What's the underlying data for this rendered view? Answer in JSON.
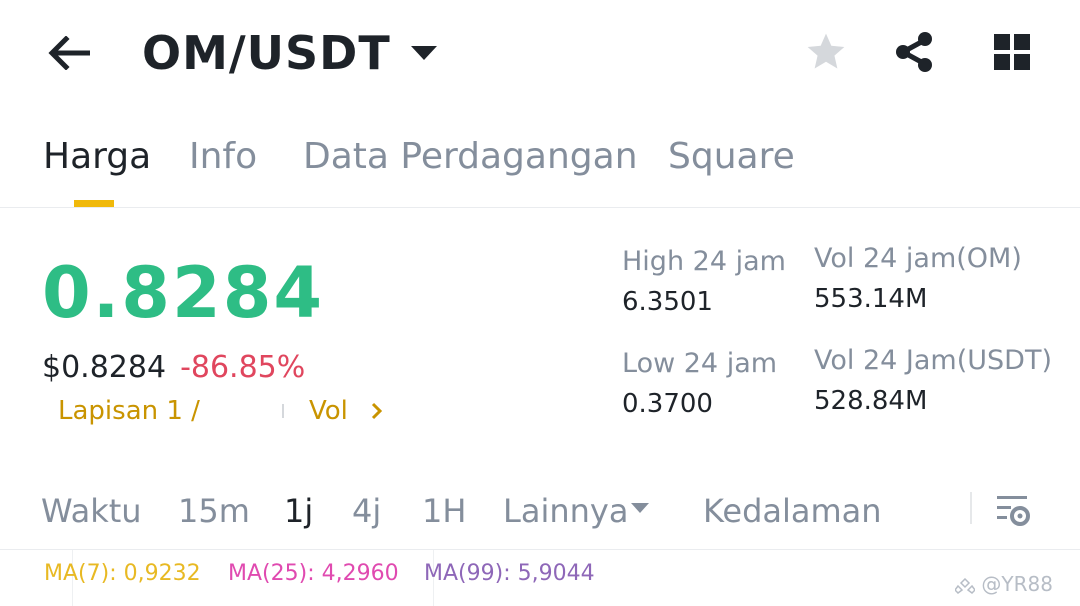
{
  "header": {
    "pair": "OM/USDT",
    "icons": [
      "back-arrow-icon",
      "favorite-star-icon",
      "share-icon",
      "grid-menu-icon"
    ]
  },
  "tabs": [
    {
      "label": "Harga",
      "active": true
    },
    {
      "label": "Info",
      "active": false
    },
    {
      "label": "Data Perdagangan",
      "active": false
    },
    {
      "label": "Square",
      "active": false
    }
  ],
  "price": {
    "last": "0.8284",
    "usd": "$0.8284",
    "change": "-86.85%",
    "layer": "Lapisan 1 /",
    "vol_link": "Vol"
  },
  "stats": {
    "high_label": "High 24 jam",
    "high_value": "6.3501",
    "low_label": "Low 24 jam",
    "low_value": "0.3700",
    "vol_om_label": "Vol 24 jam(OM)",
    "vol_om_value": "553.14M",
    "vol_usdt_label": "Vol 24 Jam(USDT)",
    "vol_usdt_value": "528.84M"
  },
  "timeframes": {
    "label": "Waktu",
    "items": [
      "15m",
      "1j",
      "4j",
      "1H"
    ],
    "active": "1j",
    "more": "Lainnya",
    "depth": "Kedalaman"
  },
  "indicators": {
    "ma7": "MA(7): 0,9232",
    "ma25": "MA(25): 4,2960",
    "ma99": "MA(99): 5,9044"
  },
  "watermark": "@YR88",
  "colors": {
    "up": "#2ebd85",
    "down": "#e0465e",
    "accent": "#f0b90b",
    "ma7": "#e8b923",
    "ma25": "#e04ab0",
    "ma99": "#8e67b8"
  }
}
